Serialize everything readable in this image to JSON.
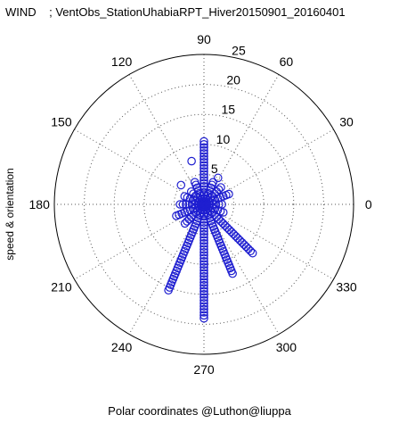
{
  "title": "WIND    ; VentObs_StationUhabiaRPT_Hiver20150901_20160401",
  "ylabel": "speed & orientation",
  "xlabel": "Polar coordinates @Luthon@liuppa",
  "colors": {
    "marker": "#1f1fd0",
    "grid": "#555555",
    "axis": "#000000"
  },
  "chart_data": {
    "type": "scatter",
    "coordinate_system": "polar",
    "angle_unit": "degrees",
    "title": "WIND    ; VentObs_StationUhabiaRPT_Hiver20150901_20160401",
    "xlabel": "Polar coordinates @Luthon@liuppa",
    "ylabel": "speed & orientation",
    "r_lim": [
      0,
      25
    ],
    "r_ticks": [
      5,
      10,
      15,
      20,
      25
    ],
    "r_tick_labels": [
      "5",
      "10",
      "15",
      "20",
      "25"
    ],
    "theta_ticks": [
      0,
      30,
      60,
      90,
      120,
      150,
      180,
      210,
      240,
      270,
      300,
      330
    ],
    "theta_tick_labels": [
      "0",
      "30",
      "60",
      "90",
      "120",
      "150",
      "180",
      "210",
      "240",
      "270",
      "300",
      "330"
    ],
    "grid": true,
    "marker": "open-circle",
    "series": [
      {
        "values_by_direction": [
          {
            "theta": 0,
            "r_max": 3
          },
          {
            "theta": 22.5,
            "r_max": 4.5
          },
          {
            "theta": 45,
            "r_max": 4
          },
          {
            "theta": 67.5,
            "r_max": 4
          },
          {
            "theta": 90,
            "r_max": 10.5
          },
          {
            "theta": 112.5,
            "r_max": 4
          },
          {
            "theta": 135,
            "r_max": 3
          },
          {
            "theta": 157.5,
            "r_max": 3.5
          },
          {
            "theta": 180,
            "r_max": 4
          },
          {
            "theta": 202.5,
            "r_max": 5
          },
          {
            "theta": 225,
            "r_max": 4.5
          },
          {
            "theta": 247.5,
            "r_max": 15.5
          },
          {
            "theta": 270,
            "r_max": 19
          },
          {
            "theta": 292.5,
            "r_max": 12.5
          },
          {
            "theta": 315,
            "r_max": 11.5
          },
          {
            "theta": 337.5,
            "r_max": 3.5
          }
        ],
        "isolated_points": [
          {
            "theta": 106,
            "r": 7.5
          },
          {
            "theta": 140,
            "r": 5
          },
          {
            "theta": 62,
            "r": 5
          }
        ],
        "radial_step": 0.5
      }
    ]
  }
}
